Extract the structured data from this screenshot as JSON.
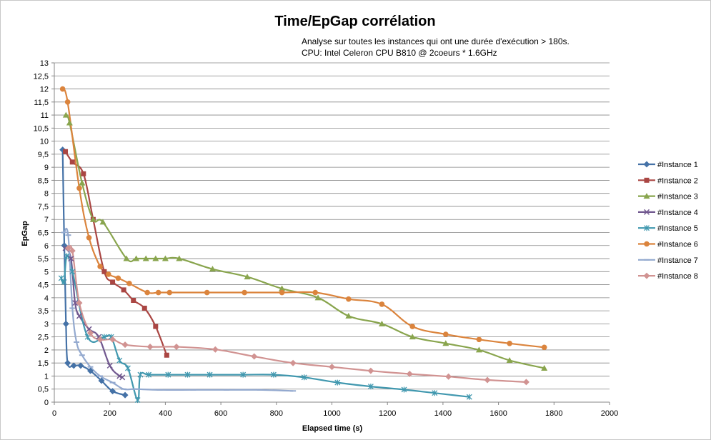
{
  "chart_data": {
    "type": "line",
    "title": "Time/EpGap corrélation",
    "subtitle_lines": [
      "Analyse sur toutes les instances qui ont une durée d'exécution > 180s.",
      "CPU: Intel Celeron CPU B810 @ 2coeurs * 1.6GHz"
    ],
    "xlabel": "Elapsed time (s)",
    "ylabel": "EpGap",
    "xlim": [
      0,
      2000
    ],
    "ylim": [
      0,
      13
    ],
    "x_ticks": [
      "0",
      "200",
      "400",
      "600",
      "800",
      "1000",
      "1200",
      "1400",
      "1600",
      "1800",
      "2000"
    ],
    "y_ticks": [
      "0",
      "0,5",
      "1",
      "1,5",
      "2",
      "2,5",
      "3",
      "3,5",
      "4",
      "4,5",
      "5",
      "5,5",
      "6",
      "6,5",
      "7",
      "7,5",
      "8",
      "8,5",
      "9",
      "9,5",
      "10",
      "10,5",
      "11",
      "11,5",
      "12",
      "12,5",
      "13"
    ],
    "grid": "horizontal",
    "legend_position": "right",
    "series": [
      {
        "name": "#Instance 1",
        "color": "#4572a7",
        "marker": "diamond",
        "points": [
          [
            30,
            9.67
          ],
          [
            36,
            6.0
          ],
          [
            42,
            3.0
          ],
          [
            48,
            1.5
          ],
          [
            70,
            1.4
          ],
          [
            95,
            1.4
          ],
          [
            130,
            1.2
          ],
          [
            170,
            0.82
          ],
          [
            210,
            0.42
          ],
          [
            255,
            0.27
          ]
        ]
      },
      {
        "name": "#Instance 2",
        "color": "#aa4643",
        "marker": "square",
        "points": [
          [
            40,
            9.6
          ],
          [
            65,
            9.2
          ],
          [
            105,
            8.75
          ],
          [
            140,
            7.0
          ],
          [
            180,
            5.0
          ],
          [
            210,
            4.6
          ],
          [
            250,
            4.3
          ],
          [
            285,
            3.9
          ],
          [
            325,
            3.6
          ],
          [
            365,
            2.9
          ],
          [
            405,
            1.8
          ]
        ]
      },
      {
        "name": "#Instance 3",
        "color": "#89a54e",
        "marker": "triangle",
        "points": [
          [
            42,
            11.0
          ],
          [
            55,
            10.7
          ],
          [
            100,
            8.4
          ],
          [
            140,
            7.0
          ],
          [
            175,
            6.9
          ],
          [
            260,
            5.5
          ],
          [
            295,
            5.5
          ],
          [
            330,
            5.5
          ],
          [
            365,
            5.5
          ],
          [
            400,
            5.5
          ],
          [
            450,
            5.5
          ],
          [
            570,
            5.1
          ],
          [
            695,
            4.8
          ],
          [
            820,
            4.35
          ],
          [
            950,
            4.0
          ],
          [
            1060,
            3.3
          ],
          [
            1180,
            3.0
          ],
          [
            1290,
            2.5
          ],
          [
            1410,
            2.25
          ],
          [
            1530,
            2.0
          ],
          [
            1640,
            1.6
          ],
          [
            1765,
            1.3
          ]
        ]
      },
      {
        "name": "#Instance 4",
        "color": "#71588f",
        "marker": "x",
        "points": [
          [
            40,
            5.9
          ],
          [
            60,
            5.5
          ],
          [
            75,
            3.8
          ],
          [
            90,
            3.3
          ],
          [
            125,
            2.8
          ],
          [
            160,
            2.5
          ],
          [
            200,
            1.4
          ],
          [
            235,
            1.0
          ],
          [
            245,
            0.95
          ]
        ]
      },
      {
        "name": "#Instance 5",
        "color": "#4198af",
        "marker": "star",
        "points": [
          [
            25,
            4.75
          ],
          [
            35,
            4.6
          ],
          [
            45,
            5.6
          ],
          [
            65,
            5.0
          ],
          [
            120,
            2.5
          ],
          [
            180,
            2.5
          ],
          [
            205,
            2.5
          ],
          [
            235,
            1.6
          ],
          [
            265,
            1.3
          ],
          [
            300,
            0.08
          ],
          [
            310,
            1.05
          ],
          [
            340,
            1.05
          ],
          [
            410,
            1.05
          ],
          [
            480,
            1.05
          ],
          [
            560,
            1.05
          ],
          [
            680,
            1.05
          ],
          [
            790,
            1.05
          ],
          [
            900,
            0.95
          ],
          [
            1020,
            0.75
          ],
          [
            1140,
            0.6
          ],
          [
            1260,
            0.48
          ],
          [
            1370,
            0.35
          ],
          [
            1495,
            0.2
          ]
        ]
      },
      {
        "name": "#Instance 6",
        "color": "#db843d",
        "marker": "circle",
        "points": [
          [
            30,
            12.0
          ],
          [
            48,
            11.5
          ],
          [
            90,
            8.2
          ],
          [
            125,
            6.3
          ],
          [
            165,
            5.2
          ],
          [
            195,
            4.9
          ],
          [
            230,
            4.75
          ],
          [
            270,
            4.55
          ],
          [
            335,
            4.2
          ],
          [
            375,
            4.2
          ],
          [
            415,
            4.2
          ],
          [
            550,
            4.2
          ],
          [
            685,
            4.2
          ],
          [
            820,
            4.2
          ],
          [
            940,
            4.2
          ],
          [
            1060,
            3.95
          ],
          [
            1180,
            3.75
          ],
          [
            1290,
            2.9
          ],
          [
            1410,
            2.6
          ],
          [
            1530,
            2.4
          ],
          [
            1640,
            2.25
          ],
          [
            1765,
            2.1
          ]
        ]
      },
      {
        "name": "#Instance 7",
        "color": "#93a9cf",
        "marker": "bar",
        "points": [
          [
            35,
            6.5
          ],
          [
            50,
            6.4
          ],
          [
            65,
            3.6
          ],
          [
            80,
            2.3
          ],
          [
            100,
            1.8
          ],
          [
            130,
            1.35
          ],
          [
            165,
            1.0
          ],
          [
            210,
            0.75
          ],
          [
            250,
            0.5
          ],
          [
            290,
            0.5
          ],
          [
            380,
            0.47
          ],
          [
            500,
            0.47
          ],
          [
            620,
            0.47
          ],
          [
            740,
            0.47
          ],
          [
            860,
            0.43
          ]
        ]
      },
      {
        "name": "#Instance 8",
        "color": "#d19392",
        "marker": "diamond",
        "points": [
          [
            50,
            5.9
          ],
          [
            65,
            5.8
          ],
          [
            90,
            3.8
          ],
          [
            130,
            2.65
          ],
          [
            165,
            2.4
          ],
          [
            210,
            2.4
          ],
          [
            255,
            2.2
          ],
          [
            345,
            2.12
          ],
          [
            440,
            2.12
          ],
          [
            580,
            2.02
          ],
          [
            720,
            1.75
          ],
          [
            860,
            1.5
          ],
          [
            1000,
            1.35
          ],
          [
            1140,
            1.2
          ],
          [
            1280,
            1.08
          ],
          [
            1420,
            0.98
          ],
          [
            1560,
            0.85
          ],
          [
            1700,
            0.77
          ]
        ]
      }
    ]
  }
}
